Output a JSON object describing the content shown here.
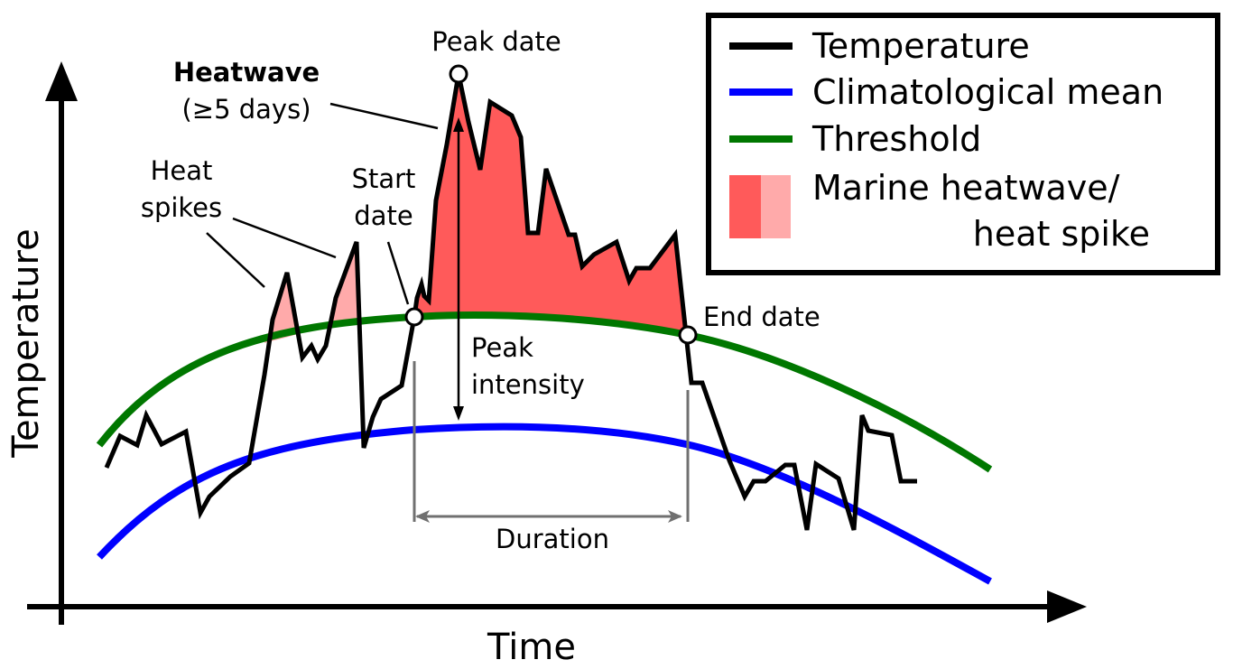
{
  "axes": {
    "x_label": "Time",
    "y_label": "Temperature"
  },
  "legend": {
    "items": [
      {
        "label": "Temperature",
        "color": "#000000"
      },
      {
        "label": "Climatological mean",
        "color": "#0000ff"
      },
      {
        "label": "Threshold",
        "color": "#008000"
      }
    ],
    "shading_label_line1": "Marine heatwave/",
    "shading_label_line2": "heat spike",
    "shading_colors": [
      "#ff5a5a",
      "#ffaaaa"
    ]
  },
  "annotations": {
    "peak_date": "Peak date",
    "heatwave_title": "Heatwave",
    "heatwave_sub": "(≥5 days)",
    "heat_spikes_line1": "Heat",
    "heat_spikes_line2": "spikes",
    "start_date_line1": "Start",
    "start_date_line2": "date",
    "end_date": "End date",
    "peak_intensity_line1": "Peak",
    "peak_intensity_line2": "intensity",
    "duration": "Duration"
  },
  "colors": {
    "temperature": "#000000",
    "climatology": "#0000ff",
    "threshold": "#007700",
    "heatwave_fill": "#ff5a5a",
    "spike_fill": "#ffaaaa",
    "guide": "#707070"
  }
}
